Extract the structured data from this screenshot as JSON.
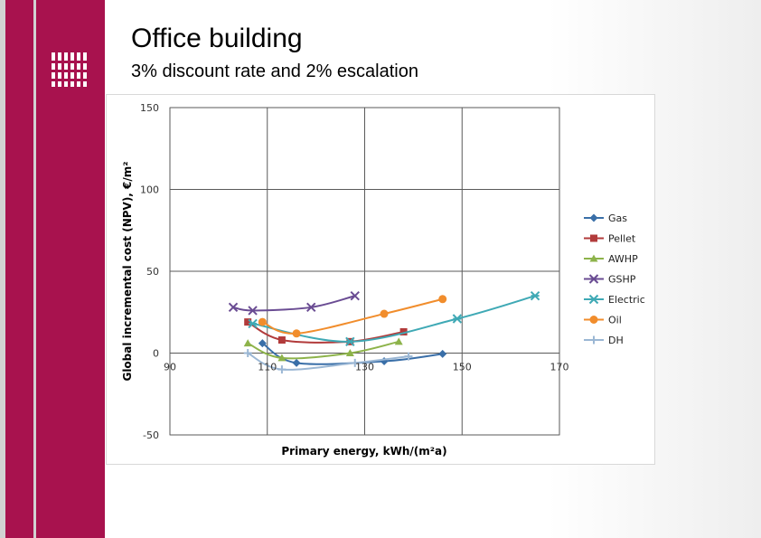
{
  "slide": {
    "title": "Office building",
    "subtitle": "3% discount rate and 2% escalation",
    "colors": {
      "accent_bar": "#a8124e",
      "grid": "#5a5a5a"
    },
    "logo_icon": "university-logo"
  },
  "chart_data": {
    "type": "line",
    "title": "",
    "xlabel": "Primary energy, kWh/(m²a)",
    "ylabel": "Global incremental cost (NPV), €/m²",
    "xlim": [
      90,
      170
    ],
    "ylim": [
      -50,
      150
    ],
    "xticks": [
      90,
      110,
      130,
      150,
      170
    ],
    "yticks": [
      -50,
      0,
      50,
      100,
      150
    ],
    "grid": true,
    "legend_position": "right",
    "series": [
      {
        "name": "Gas",
        "color": "#3a6fa8",
        "marker": "diamond",
        "x": [
          109,
          116,
          134,
          146
        ],
        "y": [
          6,
          -6,
          -5,
          -0.5
        ]
      },
      {
        "name": "Pellet",
        "color": "#b23b3b",
        "marker": "square",
        "x": [
          106,
          113,
          127,
          138
        ],
        "y": [
          19,
          8,
          7,
          13
        ]
      },
      {
        "name": "AWHP",
        "color": "#8db34a",
        "marker": "triangle",
        "x": [
          106,
          113,
          127,
          137
        ],
        "y": [
          6,
          -3,
          0,
          7
        ]
      },
      {
        "name": "GSHP",
        "color": "#6a4c93",
        "marker": "x",
        "x": [
          103,
          107,
          119,
          128
        ],
        "y": [
          28,
          26,
          28,
          35
        ]
      },
      {
        "name": "Electric",
        "color": "#3fa9b5",
        "marker": "star",
        "x": [
          107,
          127,
          149,
          165
        ],
        "y": [
          18,
          7,
          21,
          35
        ]
      },
      {
        "name": "Oil",
        "color": "#f18d2c",
        "marker": "circle",
        "x": [
          109,
          116,
          134,
          146
        ],
        "y": [
          19,
          12,
          24,
          33
        ]
      },
      {
        "name": "DH",
        "color": "#9bb7d4",
        "marker": "plus",
        "x": [
          106,
          113,
          128,
          139
        ],
        "y": [
          0,
          -10,
          -6,
          -2
        ]
      }
    ]
  }
}
